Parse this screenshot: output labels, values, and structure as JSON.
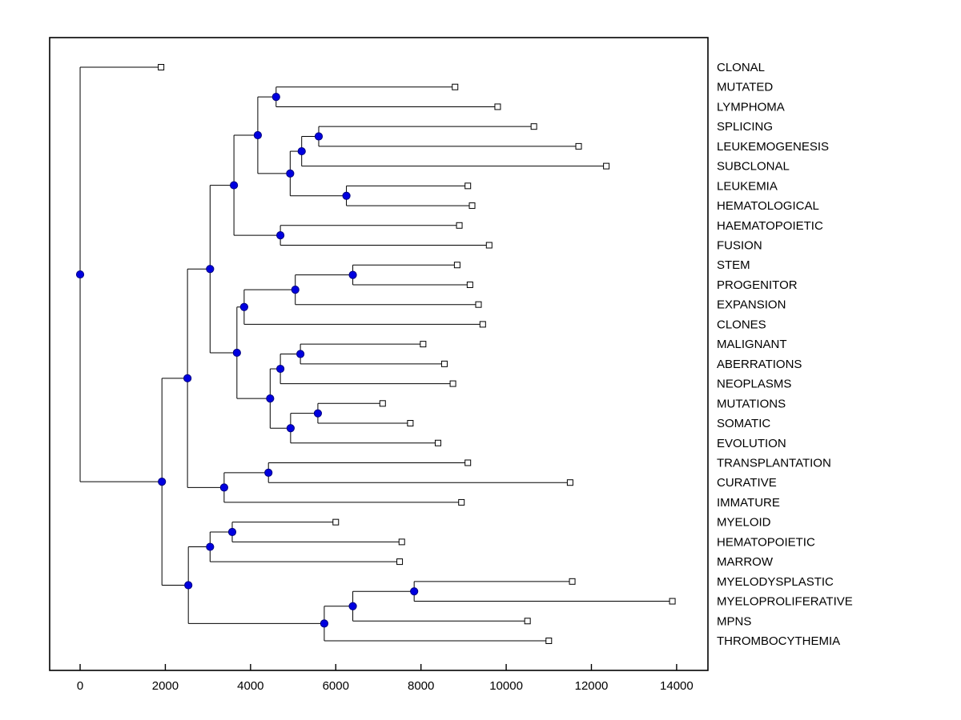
{
  "chart_data": {
    "type": "dendrogram",
    "orientation": "horizontal",
    "title": "",
    "xlabel": "",
    "ylabel": "",
    "grid": false,
    "legend": null,
    "marker_styles": {
      "internal_marker": "filled-circle",
      "leaf_marker": "open-square"
    },
    "colors": {
      "background": "#ffffff",
      "line": "#000000",
      "text": "#000000",
      "node_fill": "#0000e0",
      "node_stroke": "#000080",
      "leaf_fill": "#ffffff",
      "leaf_stroke": "#000000"
    },
    "axis": {
      "xlim": [
        -715,
        14735
      ],
      "xticks": [
        0,
        2000,
        4000,
        6000,
        8000,
        10000,
        12000,
        14000
      ],
      "xtick_labels": [
        "0",
        "2000",
        "4000",
        "6000",
        "8000",
        "10000",
        "12000",
        "14000"
      ]
    },
    "leaves": [
      {
        "label": "CLONAL",
        "x": 1900
      },
      {
        "label": "MUTATED",
        "x": 8800
      },
      {
        "label": "LYMPHOMA",
        "x": 9800
      },
      {
        "label": "SPLICING",
        "x": 10650
      },
      {
        "label": "LEUKEMOGENESIS",
        "x": 11700
      },
      {
        "label": "SUBCLONAL",
        "x": 12350
      },
      {
        "label": "LEUKEMIA",
        "x": 9100
      },
      {
        "label": "HEMATOLOGICAL",
        "x": 9200
      },
      {
        "label": "HAEMATOPOIETIC",
        "x": 8900
      },
      {
        "label": "FUSION",
        "x": 9600
      },
      {
        "label": "STEM",
        "x": 8850
      },
      {
        "label": "PROGENITOR",
        "x": 9150
      },
      {
        "label": "EXPANSION",
        "x": 9350
      },
      {
        "label": "CLONES",
        "x": 9450
      },
      {
        "label": "MALIGNANT",
        "x": 8050
      },
      {
        "label": "ABERRATIONS",
        "x": 8550
      },
      {
        "label": "NEOPLASMS",
        "x": 8750
      },
      {
        "label": "MUTATIONS",
        "x": 7100
      },
      {
        "label": "SOMATIC",
        "x": 7750
      },
      {
        "label": "EVOLUTION",
        "x": 8400
      },
      {
        "label": "TRANSPLANTATION",
        "x": 9100
      },
      {
        "label": "CURATIVE",
        "x": 11500
      },
      {
        "label": "IMMATURE",
        "x": 8950
      },
      {
        "label": "MYELOID",
        "x": 6000
      },
      {
        "label": "HEMATOPOIETIC",
        "x": 7550
      },
      {
        "label": "MARROW",
        "x": 7500
      },
      {
        "label": "MYELODYSPLASTIC",
        "x": 11550
      },
      {
        "label": "MYELOPROLIFERATIVE",
        "x": 13900
      },
      {
        "label": "MPNS",
        "x": 10500
      },
      {
        "label": "THROMBOCYTHEMIA",
        "x": 11000
      }
    ],
    "nodes": [
      {
        "id": "n_mut_lym",
        "x": 4600,
        "children": [
          1,
          2
        ]
      },
      {
        "id": "n_spl_leu",
        "x": 5600,
        "children": [
          3,
          4
        ]
      },
      {
        "id": "n_spl_sub",
        "x": 5200,
        "children": [
          "n_spl_leu",
          5
        ]
      },
      {
        "id": "n_leu_hem",
        "x": 6250,
        "children": [
          6,
          7
        ]
      },
      {
        "id": "n_top",
        "x": 4930,
        "children": [
          "n_spl_sub",
          "n_leu_hem"
        ]
      },
      {
        "id": "n_hae_fus",
        "x": 4700,
        "children": [
          8,
          9
        ]
      },
      {
        "id": "n_c",
        "x": 4170,
        "children": [
          "n_mut_lym",
          "n_top"
        ]
      },
      {
        "id": "n_f",
        "x": 3610,
        "children": [
          "n_c",
          "n_hae_fus"
        ]
      },
      {
        "id": "n_stem_pro",
        "x": 6400,
        "children": [
          10,
          11
        ]
      },
      {
        "id": "n_k",
        "x": 5050,
        "children": [
          "n_stem_pro",
          12
        ]
      },
      {
        "id": "n_l",
        "x": 3850,
        "children": [
          "n_k",
          13
        ]
      },
      {
        "id": "n_mal_abe",
        "x": 5170,
        "children": [
          14,
          15
        ]
      },
      {
        "id": "n_o",
        "x": 4700,
        "children": [
          "n_mal_abe",
          16
        ]
      },
      {
        "id": "n_mut_som",
        "x": 5580,
        "children": [
          17,
          18
        ]
      },
      {
        "id": "n_r",
        "x": 4940,
        "children": [
          "n_mut_som",
          19
        ]
      },
      {
        "id": "n_p",
        "x": 4460,
        "children": [
          "n_o",
          "n_r"
        ]
      },
      {
        "id": "n_m",
        "x": 3680,
        "children": [
          "n_l",
          "n_p"
        ]
      },
      {
        "id": "n_i",
        "x": 3050,
        "children": [
          "n_f",
          "n_m"
        ]
      },
      {
        "id": "n_tra_cur",
        "x": 4420,
        "children": [
          20,
          21
        ]
      },
      {
        "id": "n_u",
        "x": 3380,
        "children": [
          "n_tra_cur",
          22
        ]
      },
      {
        "id": "n_s",
        "x": 2520,
        "children": [
          "n_i",
          "n_u"
        ]
      },
      {
        "id": "n_mye_hem",
        "x": 3570,
        "children": [
          23,
          24
        ]
      },
      {
        "id": "n_x",
        "x": 3050,
        "children": [
          "n_mye_hem",
          25
        ]
      },
      {
        "id": "n_mds_mpn",
        "x": 7840,
        "children": [
          26,
          27
        ]
      },
      {
        "id": "n_aa",
        "x": 6400,
        "children": [
          "n_mds_mpn",
          28
        ]
      },
      {
        "id": "n_bb",
        "x": 5730,
        "children": [
          "n_aa",
          29
        ]
      },
      {
        "id": "n_y",
        "x": 2540,
        "children": [
          "n_x",
          "n_bb"
        ]
      },
      {
        "id": "n_v",
        "x": 1920,
        "children": [
          "n_s",
          "n_y"
        ]
      },
      {
        "id": "root",
        "x": 0,
        "children": [
          0,
          "n_v"
        ]
      }
    ]
  }
}
